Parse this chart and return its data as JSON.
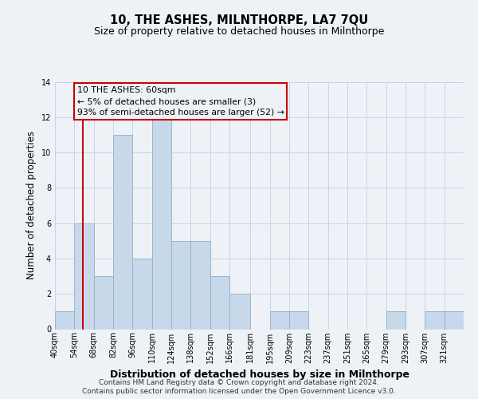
{
  "title": "10, THE ASHES, MILNTHORPE, LA7 7QU",
  "subtitle": "Size of property relative to detached houses in Milnthorpe",
  "xlabel": "Distribution of detached houses by size in Milnthorpe",
  "ylabel": "Number of detached properties",
  "bin_labels": [
    "40sqm",
    "54sqm",
    "68sqm",
    "82sqm",
    "96sqm",
    "110sqm",
    "124sqm",
    "138sqm",
    "152sqm",
    "166sqm",
    "181sqm",
    "195sqm",
    "209sqm",
    "223sqm",
    "237sqm",
    "251sqm",
    "265sqm",
    "279sqm",
    "293sqm",
    "307sqm",
    "321sqm"
  ],
  "bin_edges": [
    40,
    54,
    68,
    82,
    96,
    110,
    124,
    138,
    152,
    166,
    181,
    195,
    209,
    223,
    237,
    251,
    265,
    279,
    293,
    307,
    321,
    335
  ],
  "bar_heights": [
    1,
    6,
    3,
    11,
    4,
    12,
    5,
    5,
    3,
    2,
    0,
    1,
    1,
    0,
    0,
    0,
    0,
    1,
    0,
    1,
    1
  ],
  "bar_color": "#c8d8eb",
  "bar_edgecolor": "#9ab4cc",
  "grid_color": "#c5d5e5",
  "red_line_x": 60,
  "annotation_title": "10 THE ASHES: 60sqm",
  "annotation_line1": "← 5% of detached houses are smaller (3)",
  "annotation_line2": "93% of semi-detached houses are larger (52) →",
  "annotation_box_edgecolor": "#cc0000",
  "ylim": [
    0,
    14
  ],
  "yticks": [
    0,
    2,
    4,
    6,
    8,
    10,
    12,
    14
  ],
  "footer1": "Contains HM Land Registry data © Crown copyright and database right 2024.",
  "footer2": "Contains public sector information licensed under the Open Government Licence v3.0.",
  "background_color": "#eef2f7",
  "title_fontsize": 10.5,
  "subtitle_fontsize": 9,
  "axis_label_fontsize": 8.5,
  "tick_fontsize": 7,
  "footer_fontsize": 6.5
}
